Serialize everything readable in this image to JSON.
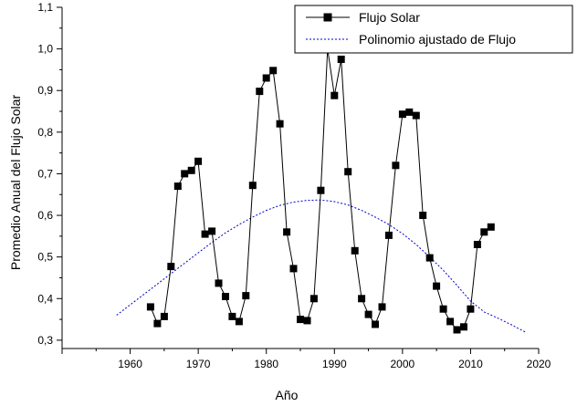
{
  "chart_data": {
    "type": "line",
    "title": "",
    "xlabel": "Año",
    "ylabel": "Promedio Anual del Flujo Solar",
    "xlim": [
      1950,
      2020
    ],
    "ylim": [
      0.28,
      1.1
    ],
    "xticks": [
      1960,
      1970,
      1980,
      1990,
      2000,
      2010,
      2020
    ],
    "yticks": [
      0.3,
      0.4,
      0.5,
      0.6,
      0.7,
      0.8,
      0.9,
      1.0,
      1.1
    ],
    "ytick_labels": [
      "0,3",
      "0,4",
      "0,5",
      "0,6",
      "0,7",
      "0,8",
      "0,9",
      "1,0",
      "1,1"
    ],
    "grid": false,
    "legend_position": "top-right",
    "series": [
      {
        "name": "Flujo Solar",
        "style": "line-square-markers",
        "color": "#000000",
        "x": [
          1963,
          1964,
          1965,
          1966,
          1967,
          1968,
          1969,
          1970,
          1971,
          1972,
          1973,
          1974,
          1975,
          1976,
          1977,
          1978,
          1979,
          1980,
          1981,
          1982,
          1983,
          1984,
          1985,
          1986,
          1987,
          1988,
          1989,
          1990,
          1991,
          1992,
          1993,
          1994,
          1995,
          1996,
          1997,
          1998,
          1999,
          2000,
          2001,
          2002,
          2003,
          2004,
          2005,
          2006,
          2007,
          2008,
          2009,
          2010,
          2011,
          2012,
          2013
        ],
        "y": [
          0.38,
          0.34,
          0.357,
          0.477,
          0.67,
          0.7,
          0.708,
          0.73,
          0.555,
          0.562,
          0.437,
          0.405,
          0.357,
          0.345,
          0.407,
          0.672,
          0.898,
          0.93,
          0.948,
          0.82,
          0.56,
          0.472,
          0.35,
          0.347,
          0.4,
          0.66,
          1.0,
          0.888,
          0.975,
          0.705,
          0.515,
          0.4,
          0.362,
          0.338,
          0.38,
          0.552,
          0.72,
          0.843,
          0.848,
          0.84,
          0.6,
          0.498,
          0.43,
          0.375,
          0.345,
          0.325,
          0.332,
          0.375,
          0.53,
          0.56,
          0.572
        ]
      },
      {
        "name": "Polinomio ajustado de Flujo",
        "style": "dotted-line",
        "color": "#0000cc",
        "x": [
          1958,
          1960,
          1962,
          1964,
          1966,
          1968,
          1970,
          1972,
          1974,
          1976,
          1978,
          1980,
          1982,
          1984,
          1986,
          1988,
          1990,
          1992,
          1994,
          1996,
          1998,
          2000,
          2002,
          2004,
          2006,
          2008,
          2010,
          2012,
          2014,
          2016,
          2018
        ],
        "y": [
          0.36,
          0.385,
          0.41,
          0.435,
          0.46,
          0.485,
          0.51,
          0.535,
          0.558,
          0.578,
          0.596,
          0.612,
          0.624,
          0.632,
          0.636,
          0.637,
          0.633,
          0.625,
          0.612,
          0.596,
          0.578,
          0.556,
          0.53,
          0.5,
          0.468,
          0.432,
          0.394,
          0.368,
          0.353,
          0.337,
          0.32
        ]
      }
    ]
  }
}
